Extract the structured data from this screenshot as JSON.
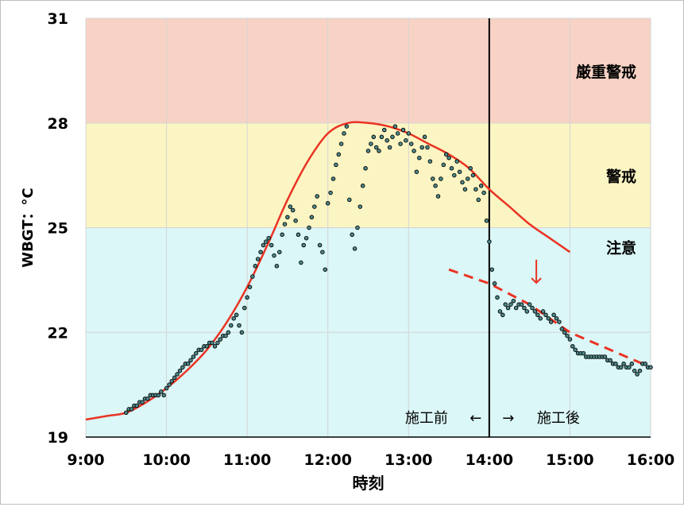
{
  "chart_data": {
    "type": "scatter",
    "xlabel": "時刻",
    "ylabel": "WBGT：°C",
    "x_ticks": [
      "9:00",
      "10:00",
      "11:00",
      "12:00",
      "13:00",
      "14:00",
      "15:00",
      "16:00"
    ],
    "y_ticks": [
      19,
      22,
      25,
      28,
      31
    ],
    "xlim": [
      "9:00",
      "16:00"
    ],
    "ylim": [
      19,
      31
    ],
    "grid": true,
    "zones": [
      {
        "label": "厳重警戒",
        "from": 28,
        "to": 31,
        "color": "#f8d3c5"
      },
      {
        "label": "警戒",
        "from": 25,
        "to": 28,
        "color": "#fbf5c3"
      },
      {
        "label": "注意",
        "from": 19,
        "to": 25,
        "color": "#dbf7f7"
      }
    ],
    "divider": {
      "x": "14:00",
      "left_label": "施工前",
      "left_arrow": "←",
      "right_arrow": "→",
      "right_label": "施工後"
    },
    "series": [
      {
        "kind": "measured",
        "color": "#000000",
        "fill": "#4f8a8b",
        "points": [
          [
            "9:30",
            19.7
          ],
          [
            "9:32",
            19.8
          ],
          [
            "9:34",
            19.8
          ],
          [
            "9:36",
            19.9
          ],
          [
            "9:38",
            19.9
          ],
          [
            "9:40",
            20.0
          ],
          [
            "9:42",
            20.0
          ],
          [
            "9:44",
            20.1
          ],
          [
            "9:46",
            20.1
          ],
          [
            "9:48",
            20.2
          ],
          [
            "9:50",
            20.2
          ],
          [
            "9:52",
            20.2
          ],
          [
            "9:54",
            20.2
          ],
          [
            "9:56",
            20.3
          ],
          [
            "9:58",
            20.2
          ],
          [
            "10:00",
            20.4
          ],
          [
            "10:02",
            20.5
          ],
          [
            "10:04",
            20.6
          ],
          [
            "10:06",
            20.7
          ],
          [
            "10:08",
            20.8
          ],
          [
            "10:10",
            20.9
          ],
          [
            "10:12",
            21.0
          ],
          [
            "10:14",
            21.1
          ],
          [
            "10:16",
            21.1
          ],
          [
            "10:18",
            21.2
          ],
          [
            "10:20",
            21.3
          ],
          [
            "10:22",
            21.4
          ],
          [
            "10:24",
            21.5
          ],
          [
            "10:26",
            21.5
          ],
          [
            "10:28",
            21.6
          ],
          [
            "10:30",
            21.6
          ],
          [
            "10:32",
            21.7
          ],
          [
            "10:34",
            21.7
          ],
          [
            "10:36",
            21.6
          ],
          [
            "10:38",
            21.7
          ],
          [
            "10:40",
            21.8
          ],
          [
            "10:42",
            21.9
          ],
          [
            "10:44",
            21.9
          ],
          [
            "10:46",
            22.0
          ],
          [
            "10:48",
            22.2
          ],
          [
            "10:50",
            22.4
          ],
          [
            "10:52",
            22.5
          ],
          [
            "10:54",
            22.2
          ],
          [
            "10:56",
            22.0
          ],
          [
            "10:58",
            22.7
          ],
          [
            "11:00",
            23.0
          ],
          [
            "11:02",
            23.3
          ],
          [
            "11:04",
            23.6
          ],
          [
            "11:06",
            23.9
          ],
          [
            "11:08",
            24.1
          ],
          [
            "11:10",
            24.3
          ],
          [
            "11:12",
            24.5
          ],
          [
            "11:14",
            24.6
          ],
          [
            "11:16",
            24.7
          ],
          [
            "11:18",
            24.5
          ],
          [
            "11:20",
            24.2
          ],
          [
            "11:22",
            23.9
          ],
          [
            "11:24",
            24.3
          ],
          [
            "11:26",
            24.8
          ],
          [
            "11:28",
            25.1
          ],
          [
            "11:30",
            25.3
          ],
          [
            "11:32",
            25.6
          ],
          [
            "11:34",
            25.5
          ],
          [
            "11:36",
            25.2
          ],
          [
            "11:38",
            24.8
          ],
          [
            "11:40",
            24.0
          ],
          [
            "11:42",
            24.5
          ],
          [
            "11:44",
            24.7
          ],
          [
            "11:46",
            25.0
          ],
          [
            "11:48",
            25.3
          ],
          [
            "11:50",
            25.6
          ],
          [
            "11:52",
            25.9
          ],
          [
            "11:54",
            24.5
          ],
          [
            "11:56",
            24.3
          ],
          [
            "11:58",
            23.8
          ],
          [
            "12:00",
            25.7
          ],
          [
            "12:02",
            26.0
          ],
          [
            "12:04",
            26.4
          ],
          [
            "12:06",
            26.8
          ],
          [
            "12:08",
            27.1
          ],
          [
            "12:10",
            27.4
          ],
          [
            "12:12",
            27.7
          ],
          [
            "12:14",
            27.9
          ],
          [
            "12:16",
            25.8
          ],
          [
            "12:18",
            24.8
          ],
          [
            "12:20",
            24.4
          ],
          [
            "12:22",
            25.0
          ],
          [
            "12:24",
            25.6
          ],
          [
            "12:26",
            26.2
          ],
          [
            "12:28",
            26.7
          ],
          [
            "12:30",
            27.2
          ],
          [
            "12:32",
            27.4
          ],
          [
            "12:34",
            27.6
          ],
          [
            "12:36",
            27.3
          ],
          [
            "12:38",
            27.2
          ],
          [
            "12:40",
            27.6
          ],
          [
            "12:42",
            27.8
          ],
          [
            "12:44",
            27.5
          ],
          [
            "12:46",
            27.3
          ],
          [
            "12:48",
            27.6
          ],
          [
            "12:50",
            27.9
          ],
          [
            "12:52",
            27.7
          ],
          [
            "12:54",
            27.4
          ],
          [
            "12:56",
            27.8
          ],
          [
            "12:58",
            27.5
          ],
          [
            "13:00",
            27.7
          ],
          [
            "13:02",
            27.4
          ],
          [
            "13:04",
            27.2
          ],
          [
            "13:06",
            26.6
          ],
          [
            "13:08",
            27.0
          ],
          [
            "13:10",
            27.3
          ],
          [
            "13:12",
            27.6
          ],
          [
            "13:14",
            27.3
          ],
          [
            "13:16",
            26.9
          ],
          [
            "13:18",
            26.4
          ],
          [
            "13:20",
            26.2
          ],
          [
            "13:22",
            25.9
          ],
          [
            "13:24",
            26.4
          ],
          [
            "13:26",
            26.8
          ],
          [
            "13:28",
            27.1
          ],
          [
            "13:30",
            27.0
          ],
          [
            "13:32",
            26.7
          ],
          [
            "13:34",
            26.5
          ],
          [
            "13:36",
            26.9
          ],
          [
            "13:38",
            26.6
          ],
          [
            "13:40",
            26.3
          ],
          [
            "13:42",
            26.1
          ],
          [
            "13:44",
            26.4
          ],
          [
            "13:46",
            26.7
          ],
          [
            "13:48",
            26.5
          ],
          [
            "13:50",
            26.1
          ],
          [
            "13:52",
            25.8
          ],
          [
            "13:54",
            26.2
          ],
          [
            "13:56",
            26.0
          ],
          [
            "13:58",
            25.2
          ],
          [
            "14:00",
            24.6
          ],
          [
            "14:02",
            23.8
          ],
          [
            "14:04",
            23.4
          ],
          [
            "14:06",
            23.0
          ],
          [
            "14:08",
            22.6
          ],
          [
            "14:10",
            22.5
          ],
          [
            "14:12",
            22.8
          ],
          [
            "14:14",
            22.7
          ],
          [
            "14:16",
            22.8
          ],
          [
            "14:18",
            22.9
          ],
          [
            "14:20",
            22.7
          ],
          [
            "14:22",
            22.8
          ],
          [
            "14:24",
            22.8
          ],
          [
            "14:26",
            22.7
          ],
          [
            "14:28",
            22.6
          ],
          [
            "14:30",
            22.8
          ],
          [
            "14:32",
            22.7
          ],
          [
            "14:34",
            22.6
          ],
          [
            "14:36",
            22.5
          ],
          [
            "14:38",
            22.4
          ],
          [
            "14:40",
            22.6
          ],
          [
            "14:42",
            22.5
          ],
          [
            "14:44",
            22.4
          ],
          [
            "14:46",
            22.3
          ],
          [
            "14:48",
            22.5
          ],
          [
            "14:50",
            22.4
          ],
          [
            "14:52",
            22.3
          ],
          [
            "14:54",
            22.1
          ],
          [
            "14:56",
            22.0
          ],
          [
            "14:58",
            21.9
          ],
          [
            "15:00",
            21.8
          ],
          [
            "15:02",
            21.6
          ],
          [
            "15:04",
            21.5
          ],
          [
            "15:06",
            21.4
          ],
          [
            "15:08",
            21.4
          ],
          [
            "15:10",
            21.4
          ],
          [
            "15:12",
            21.3
          ],
          [
            "15:14",
            21.3
          ],
          [
            "15:16",
            21.3
          ],
          [
            "15:18",
            21.3
          ],
          [
            "15:20",
            21.3
          ],
          [
            "15:22",
            21.3
          ],
          [
            "15:24",
            21.3
          ],
          [
            "15:26",
            21.3
          ],
          [
            "15:28",
            21.2
          ],
          [
            "15:30",
            21.2
          ],
          [
            "15:32",
            21.1
          ],
          [
            "15:34",
            21.1
          ],
          [
            "15:36",
            21.0
          ],
          [
            "15:38",
            21.0
          ],
          [
            "15:40",
            21.1
          ],
          [
            "15:42",
            21.0
          ],
          [
            "15:44",
            21.0
          ],
          [
            "15:46",
            21.1
          ],
          [
            "15:48",
            20.9
          ],
          [
            "15:50",
            20.8
          ],
          [
            "15:52",
            20.9
          ],
          [
            "15:54",
            21.1
          ],
          [
            "15:56",
            21.1
          ],
          [
            "15:58",
            21.0
          ],
          [
            "16:00",
            21.0
          ]
        ]
      },
      {
        "kind": "model-curve",
        "color": "#ea3323",
        "points": [
          [
            "9:00",
            19.5
          ],
          [
            "9:15",
            19.6
          ],
          [
            "9:30",
            19.7
          ],
          [
            "9:45",
            20.0
          ],
          [
            "10:00",
            20.4
          ],
          [
            "10:15",
            20.9
          ],
          [
            "10:30",
            21.5
          ],
          [
            "10:45",
            22.3
          ],
          [
            "11:00",
            23.3
          ],
          [
            "11:15",
            24.5
          ],
          [
            "11:30",
            25.8
          ],
          [
            "11:45",
            26.9
          ],
          [
            "12:00",
            27.7
          ],
          [
            "12:15",
            28.0
          ],
          [
            "12:30",
            28.0
          ],
          [
            "12:45",
            27.9
          ],
          [
            "13:00",
            27.7
          ],
          [
            "13:15",
            27.4
          ],
          [
            "13:30",
            27.1
          ],
          [
            "13:45",
            26.7
          ],
          [
            "14:00",
            26.1
          ],
          [
            "14:15",
            25.6
          ],
          [
            "14:30",
            25.1
          ],
          [
            "14:45",
            24.7
          ],
          [
            "15:00",
            24.3
          ]
        ]
      },
      {
        "kind": "post-trend",
        "color": "#ea3323",
        "dashed": true,
        "points": [
          [
            "13:30",
            23.8
          ],
          [
            "14:00",
            23.4
          ],
          [
            "14:30",
            22.8
          ],
          [
            "15:00",
            22.0
          ],
          [
            "15:30",
            21.5
          ],
          [
            "16:00",
            21.0
          ]
        ]
      }
    ],
    "annotation_arrow": {
      "x": "14:35",
      "y_from": 23.9,
      "y_to": 23.6,
      "color": "#ea3323"
    }
  }
}
